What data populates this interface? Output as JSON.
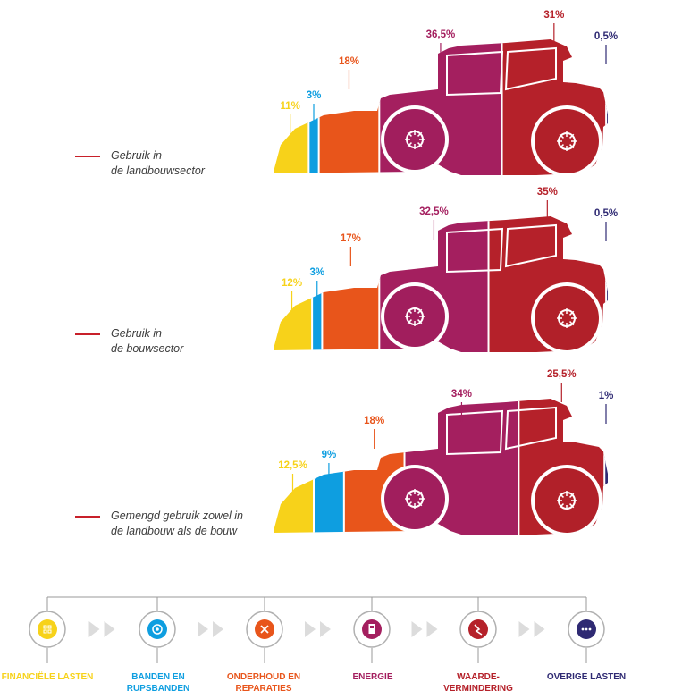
{
  "colors": {
    "financial": "#f7d21a",
    "tyres": "#0e9ee0",
    "maintenance": "#e8551b",
    "energy": "#a41f5f",
    "depreciation": "#b5212a",
    "other": "#2f2a73",
    "label_dash": "#c8202a",
    "connector": "#9a9a9a",
    "arrow": "#dcdcdc"
  },
  "rows": [
    {
      "label_line1": "Gebruik in",
      "label_line2": "de landbouwsector"
    },
    {
      "label_line1": "Gebruik in",
      "label_line2": "de bouwsector"
    },
    {
      "label_line1": "Gemengd gebruik zowel in",
      "label_line2": "de landbouw als de bouw"
    }
  ],
  "chart_data": {
    "type": "bar",
    "stacked": true,
    "orientation": "horizontal",
    "categories": [
      "Gebruik in de landbouwsector",
      "Gebruik in de bouwsector",
      "Gemengd gebruik zowel in de landbouw als de bouw"
    ],
    "series": [
      {
        "name": "FINANCIËLE LASTEN",
        "values": [
          11,
          12,
          12.5
        ],
        "labels": [
          "11%",
          "12%",
          "12,5%"
        ]
      },
      {
        "name": "BANDEN EN RUPSBANDEN",
        "values": [
          3,
          3,
          9
        ],
        "labels": [
          "3%",
          "3%",
          "9%"
        ]
      },
      {
        "name": "ONDERHOUD EN REPARATIES",
        "values": [
          18,
          17,
          18
        ],
        "labels": [
          "18%",
          "17%",
          "18%"
        ]
      },
      {
        "name": "ENERGIE",
        "values": [
          36.5,
          32.5,
          34
        ],
        "labels": [
          "36,5%",
          "32,5%",
          "34%"
        ]
      },
      {
        "name": "WAARDEVERMINDERING",
        "values": [
          31,
          35,
          25.5
        ],
        "labels": [
          "31%",
          "35%",
          "25,5%"
        ]
      },
      {
        "name": "OVERIGE LASTEN",
        "values": [
          0.5,
          0.5,
          1
        ],
        "labels": [
          "0,5%",
          "0,5%",
          "1%"
        ]
      }
    ]
  },
  "legend": [
    {
      "line1": "FINANCIËLE LASTEN",
      "line2": "",
      "icon": "grid-icon"
    },
    {
      "line1": "BANDEN EN",
      "line2": "RUPSBANDEN",
      "icon": "tyre-icon"
    },
    {
      "line1": "ONDERHOUD EN",
      "line2": "REPARATIES",
      "icon": "tools-icon"
    },
    {
      "line1": "ENERGIE",
      "line2": "",
      "icon": "fuel-pump-icon"
    },
    {
      "line1": "WAARDE-",
      "line2": "VERMINDERING",
      "icon": "trend-down-icon"
    },
    {
      "line1": "OVERIGE LASTEN",
      "line2": "",
      "icon": "ellipsis-icon"
    }
  ]
}
